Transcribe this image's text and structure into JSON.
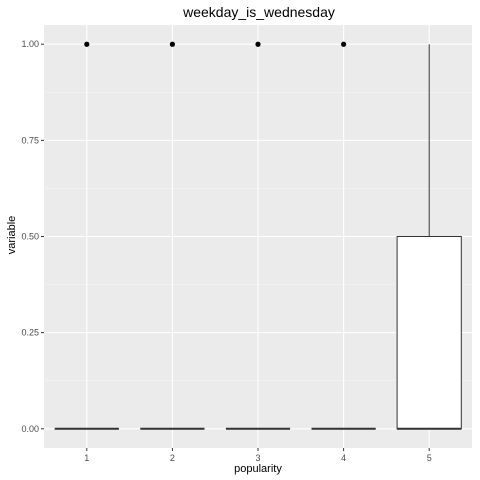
{
  "chart_data": {
    "type": "boxplot",
    "title": "weekday_is_wednesday",
    "xlabel": "popularity",
    "ylabel": "variable",
    "categories": [
      "1",
      "2",
      "3",
      "4",
      "5"
    ],
    "yticks": [
      0,
      0.25,
      0.5,
      0.75,
      1
    ],
    "ytick_labels": [
      "0.00",
      "0.25",
      "0.50",
      "0.75",
      "1.00"
    ],
    "ylim": [
      -0.05,
      1.05
    ],
    "grid": true,
    "boxes": [
      {
        "category": "1",
        "min": 0,
        "q1": 0,
        "median": 0,
        "q3": 0,
        "max": 0,
        "outliers": [
          1
        ]
      },
      {
        "category": "2",
        "min": 0,
        "q1": 0,
        "median": 0,
        "q3": 0,
        "max": 0,
        "outliers": [
          1
        ]
      },
      {
        "category": "3",
        "min": 0,
        "q1": 0,
        "median": 0,
        "q3": 0,
        "max": 0,
        "outliers": [
          1
        ]
      },
      {
        "category": "4",
        "min": 0,
        "q1": 0,
        "median": 0,
        "q3": 0,
        "max": 0,
        "outliers": [
          1
        ]
      },
      {
        "category": "5",
        "min": 0,
        "q1": 0,
        "median": 0,
        "q3": 0.5,
        "max": 1,
        "outliers": []
      }
    ],
    "colors": {
      "panel": "#EBEBEB",
      "grid_major": "#FFFFFF",
      "box_fill": "#FFFFFF",
      "box_line": "#333333",
      "outlier": "#000000"
    }
  }
}
